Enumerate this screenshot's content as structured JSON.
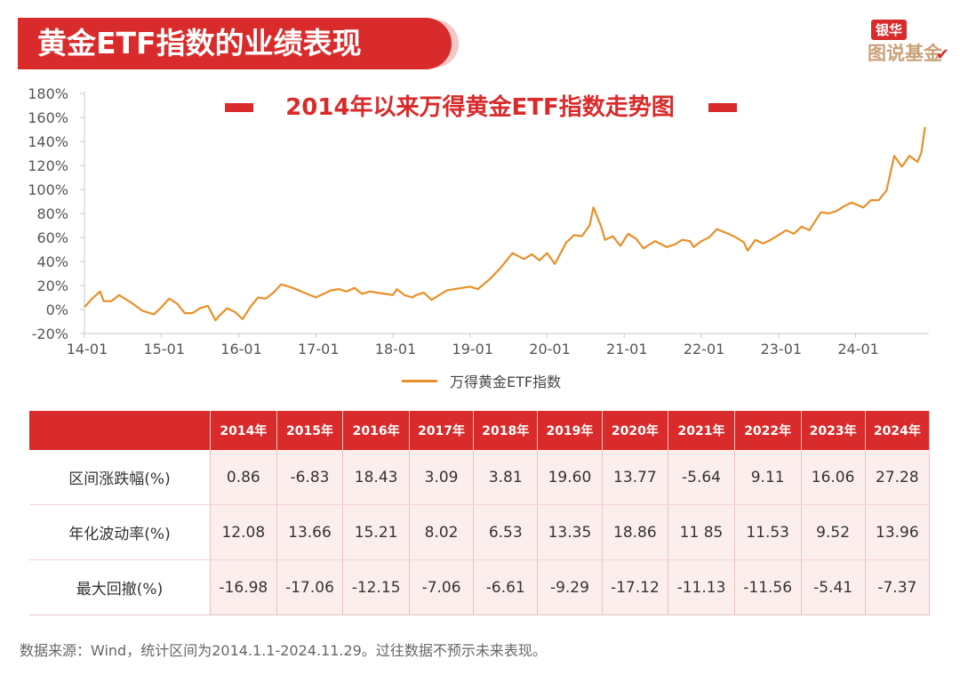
{
  "header": {
    "title": "黄金ETF指数的业绩表现"
  },
  "brand": {
    "top": "银华",
    "bottom": "图说基金"
  },
  "chart_data": {
    "type": "line",
    "title": "2014年以来万得黄金ETF指数走势图",
    "xlabel": "",
    "ylabel": "",
    "ylim": [
      -20,
      180
    ],
    "yticks": [
      "180%",
      "160%",
      "140%",
      "120%",
      "100%",
      "80%",
      "60%",
      "40%",
      "20%",
      "0%",
      "-20%"
    ],
    "xticks": [
      "14-01",
      "15-01",
      "16-01",
      "17-01",
      "18-01",
      "19-01",
      "20-01",
      "21-01",
      "22-01",
      "23-01",
      "24-01"
    ],
    "grid": false,
    "legend_position": "bottom",
    "color": "#e8902a",
    "series": [
      {
        "name": "万得黄金ETF指数",
        "x": [
          2014.0,
          2014.1,
          2014.2,
          2014.25,
          2014.35,
          2014.45,
          2014.6,
          2014.75,
          2014.9,
          2015.0,
          2015.1,
          2015.2,
          2015.3,
          2015.4,
          2015.5,
          2015.6,
          2015.7,
          2015.75,
          2015.85,
          2015.95,
          2016.05,
          2016.15,
          2016.25,
          2016.35,
          2016.45,
          2016.55,
          2016.7,
          2016.85,
          2017.0,
          2017.2,
          2017.3,
          2017.4,
          2017.5,
          2017.6,
          2017.7,
          2017.8,
          2017.9,
          2018.0,
          2018.05,
          2018.15,
          2018.25,
          2018.3,
          2018.4,
          2018.5,
          2018.7,
          2018.9,
          2019.0,
          2019.1,
          2019.25,
          2019.4,
          2019.55,
          2019.7,
          2019.8,
          2019.9,
          2020.0,
          2020.1,
          2020.25,
          2020.35,
          2020.45,
          2020.55,
          2020.6,
          2020.7,
          2020.75,
          2020.85,
          2020.95,
          2021.05,
          2021.15,
          2021.25,
          2021.4,
          2021.55,
          2021.65,
          2021.75,
          2021.85,
          2021.9,
          2022.0,
          2022.1,
          2022.2,
          2022.35,
          2022.45,
          2022.55,
          2022.6,
          2022.7,
          2022.8,
          2022.9,
          2023.0,
          2023.1,
          2023.2,
          2023.3,
          2023.4,
          2023.55,
          2023.65,
          2023.75,
          2023.85,
          2023.95,
          2024.1,
          2024.2,
          2024.3,
          2024.4,
          2024.5,
          2024.6,
          2024.7,
          2024.8,
          2024.85,
          2024.9
        ],
        "y": [
          2,
          9,
          15,
          7,
          7,
          12,
          6,
          -1,
          -4,
          2,
          9,
          5,
          -3,
          -3,
          1,
          3,
          -9,
          -5,
          1,
          -2,
          -8,
          2,
          10,
          9,
          14,
          21,
          18,
          14,
          10,
          16,
          17,
          15,
          18,
          13,
          15,
          14,
          13,
          12,
          17,
          12,
          10,
          12,
          14,
          8,
          16,
          18,
          19,
          17,
          25,
          35,
          47,
          42,
          46,
          41,
          47,
          38,
          56,
          62,
          61,
          70,
          85,
          69,
          58,
          61,
          53,
          63,
          59,
          51,
          57,
          52,
          54,
          58,
          57,
          52,
          57,
          60,
          67,
          63,
          60,
          56,
          49,
          58,
          55,
          58,
          62,
          66,
          63,
          69,
          66,
          81,
          80,
          82,
          86,
          89,
          85,
          91,
          91,
          99,
          128,
          119,
          128,
          123,
          130,
          152
        ]
      }
    ]
  },
  "table": {
    "headers": [
      "2014年",
      "2015年",
      "2016年",
      "2017年",
      "2018年",
      "2019年",
      "2020年",
      "2021年",
      "2022年",
      "2023年",
      "2024年"
    ],
    "rows": [
      {
        "label": "区间涨跌幅(%)",
        "values": [
          "0.86",
          "-6.83",
          "18.43",
          "3.09",
          "3.81",
          "19.60",
          "13.77",
          "-5.64",
          "9.11",
          "16.06",
          "27.28"
        ]
      },
      {
        "label": "年化波动率(%)",
        "values": [
          "12.08",
          "13.66",
          "15.21",
          "8.02",
          "6.53",
          "13.35",
          "18.86",
          "11 85",
          "11.53",
          "9.52",
          "13.96"
        ]
      },
      {
        "label": "最大回撤(%)",
        "values": [
          "-16.98",
          "-17.06",
          "-12.15",
          "-7.06",
          "-6.61",
          "-9.29",
          "-17.12",
          "-11.13",
          "-11.56",
          "-5.41",
          "-7.37"
        ]
      }
    ]
  },
  "footer": {
    "source": "数据来源：Wind，统计区间为2014.1.1-2024.11.29。过往数据不预示未来表现。"
  }
}
